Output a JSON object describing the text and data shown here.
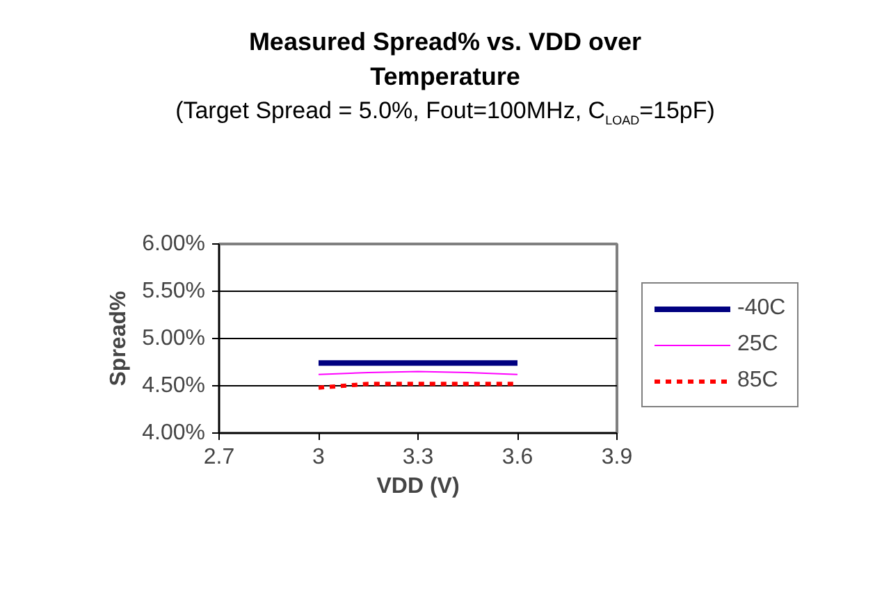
{
  "chart_data": {
    "type": "line",
    "title": "Measured Spread% vs. VDD over Temperature",
    "subtitle": "(Target Spread = 5.0%, Fout=100MHz, C$_{LOAD}$=15pF)",
    "xlabel": "VDD (V)",
    "ylabel": "Spread%",
    "x": [
      3.0,
      3.15,
      3.3,
      3.45,
      3.6
    ],
    "series": [
      {
        "name": "-40C",
        "color": "#000080",
        "values": [
          4.74,
          4.74,
          4.74,
          4.74,
          4.74
        ],
        "line_style": "solid"
      },
      {
        "name": "25C",
        "color": "#ff00ff",
        "values": [
          4.62,
          4.64,
          4.65,
          4.64,
          4.62
        ],
        "line_style": "solid"
      },
      {
        "name": "85C",
        "color": "#ff0000",
        "values": [
          4.48,
          4.52,
          4.52,
          4.52,
          4.52
        ],
        "line_style": "dotted"
      }
    ],
    "xlim": [
      2.7,
      3.9
    ],
    "xticks": [
      2.7,
      3,
      3.3,
      3.6,
      3.9
    ],
    "ylim": [
      4.0,
      6.0
    ],
    "yticks": [
      {
        "value": 4.0,
        "label": "4.00%"
      },
      {
        "value": 4.5,
        "label": "4.50%"
      },
      {
        "value": 5.0,
        "label": "5.00%"
      },
      {
        "value": 5.5,
        "label": "5.50%"
      },
      {
        "value": 6.0,
        "label": "6.00%"
      }
    ],
    "grid": "y",
    "legend": "right",
    "marker": "none"
  }
}
